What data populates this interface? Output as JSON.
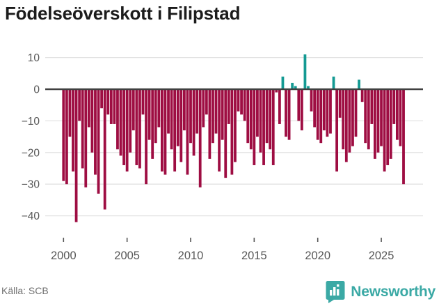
{
  "title": "Födelseöverskott i Filipstad",
  "source": "Källa: SCB",
  "logo": {
    "text": "Newsworthy"
  },
  "colors": {
    "negative_bar": "#9e0d42",
    "positive_bar": "#149a93",
    "zero_line": "#404040",
    "gridline": "#e3e3e3",
    "axis_text": "#575757",
    "title_text": "#1c1c1c",
    "source_text": "#6f6f6f",
    "logo_teal": "#3ba9a5"
  },
  "chart_data": {
    "type": "bar",
    "title": "Födelseöverskott i Filipstad",
    "xlabel": "",
    "ylabel": "",
    "frequency": "quarterly",
    "start_period": "2000-Q1",
    "end_period": "2026-Q4",
    "grid": true,
    "legend": false,
    "ylim": [
      -45,
      13
    ],
    "yticks": [
      10,
      0,
      -10,
      -20,
      -30,
      -40
    ],
    "ytick_labels": [
      "10",
      "0",
      "−10",
      "−20",
      "−30",
      "−40"
    ],
    "xticks": [
      2000,
      2005,
      2010,
      2015,
      2020,
      2025
    ],
    "xtick_labels": [
      "2000",
      "2005",
      "2010",
      "2015",
      "2020",
      "2025"
    ],
    "series": [
      {
        "name": "Födelseöverskott",
        "values": [
          -29,
          -30,
          -15,
          -26,
          -42,
          -10,
          -25,
          -31,
          -12,
          -20,
          -27,
          -33,
          -6,
          -38,
          -8,
          -11,
          -11,
          -19,
          -21,
          -24,
          -26,
          -20,
          -13,
          -24,
          -25,
          -8,
          -30,
          -16,
          -22,
          -17,
          -12,
          -26,
          -27,
          -14,
          -19,
          -26,
          -18,
          -23,
          -13,
          -27,
          -17,
          -21,
          -14,
          -31,
          -12,
          -8,
          -22,
          -17,
          -14,
          -26,
          -16,
          -28,
          -11,
          -27,
          -23,
          -7,
          -8,
          -10,
          -17,
          -19,
          -24,
          -15,
          -20,
          -24,
          -17,
          -19,
          -24,
          -1,
          -11,
          4,
          -15,
          -16,
          2,
          1,
          -10,
          -13,
          11,
          1,
          -7,
          -12,
          -16,
          -17,
          -13,
          -15,
          -14,
          4,
          -26,
          -9,
          -19,
          -23,
          -20,
          -18,
          -15,
          3,
          -4,
          -17,
          -19,
          -11,
          -22,
          -20,
          -18,
          -26,
          -24,
          -22,
          -11,
          -16,
          -18,
          -30
        ]
      }
    ]
  }
}
